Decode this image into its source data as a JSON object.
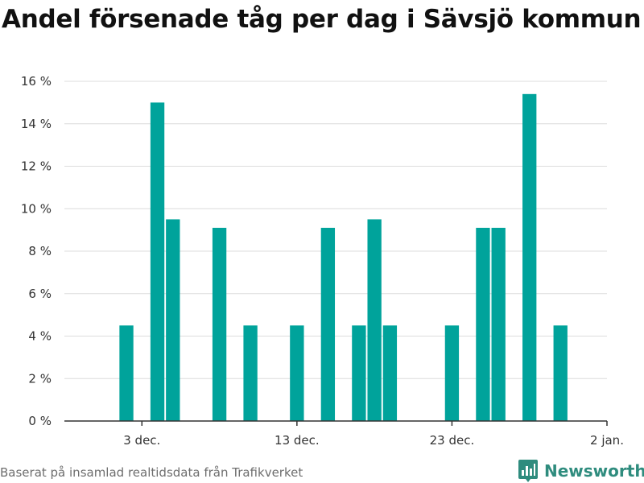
{
  "title": "Andel försenade tåg per dag i Sävsjö kommun",
  "source": "Baserat på insamlad realtidsdata från Trafikverket",
  "brand": {
    "name": "Newsworthy",
    "icon": "bar-chart-logo-icon",
    "color": "#2f8c7e"
  },
  "chart_data": {
    "type": "bar",
    "title": "Andel försenade tåg per dag i Sävsjö kommun",
    "xlabel": "",
    "ylabel": "",
    "color": "#00a39b",
    "grid": true,
    "ylim": [
      0,
      16
    ],
    "yticks": [
      {
        "value": 0,
        "label": "0 %"
      },
      {
        "value": 2,
        "label": "2 %"
      },
      {
        "value": 4,
        "label": "4 %"
      },
      {
        "value": 6,
        "label": "6 %"
      },
      {
        "value": 8,
        "label": "8 %"
      },
      {
        "value": 10,
        "label": "10 %"
      },
      {
        "value": 12,
        "label": "12 %"
      },
      {
        "value": 14,
        "label": "14 %"
      },
      {
        "value": 16,
        "label": "16 %"
      }
    ],
    "xlim": [
      "2019-11-28",
      "2020-01-02"
    ],
    "xticks": [
      {
        "date": "2019-12-03",
        "label": "3 dec."
      },
      {
        "date": "2019-12-13",
        "label": "13 dec."
      },
      {
        "date": "2019-12-23",
        "label": "23 dec."
      },
      {
        "date": "2020-01-02",
        "label": "2 jan."
      }
    ],
    "x": [
      "2019-12-02",
      "2019-12-03",
      "2019-12-04",
      "2019-12-05",
      "2019-12-06",
      "2019-12-07",
      "2019-12-08",
      "2019-12-09",
      "2019-12-10",
      "2019-12-11",
      "2019-12-12",
      "2019-12-13",
      "2019-12-14",
      "2019-12-15",
      "2019-12-16",
      "2019-12-17",
      "2019-12-18",
      "2019-12-19",
      "2019-12-20",
      "2019-12-21",
      "2019-12-22",
      "2019-12-23",
      "2019-12-24",
      "2019-12-25",
      "2019-12-26",
      "2019-12-27",
      "2019-12-28",
      "2019-12-29",
      "2019-12-30"
    ],
    "values": [
      4.5,
      0,
      15.0,
      9.5,
      0,
      0,
      9.1,
      0,
      4.5,
      0,
      0,
      4.5,
      0,
      9.1,
      0,
      4.5,
      9.5,
      4.5,
      0,
      0,
      0,
      4.5,
      0,
      9.1,
      9.1,
      0,
      15.4,
      0,
      4.5
    ]
  }
}
